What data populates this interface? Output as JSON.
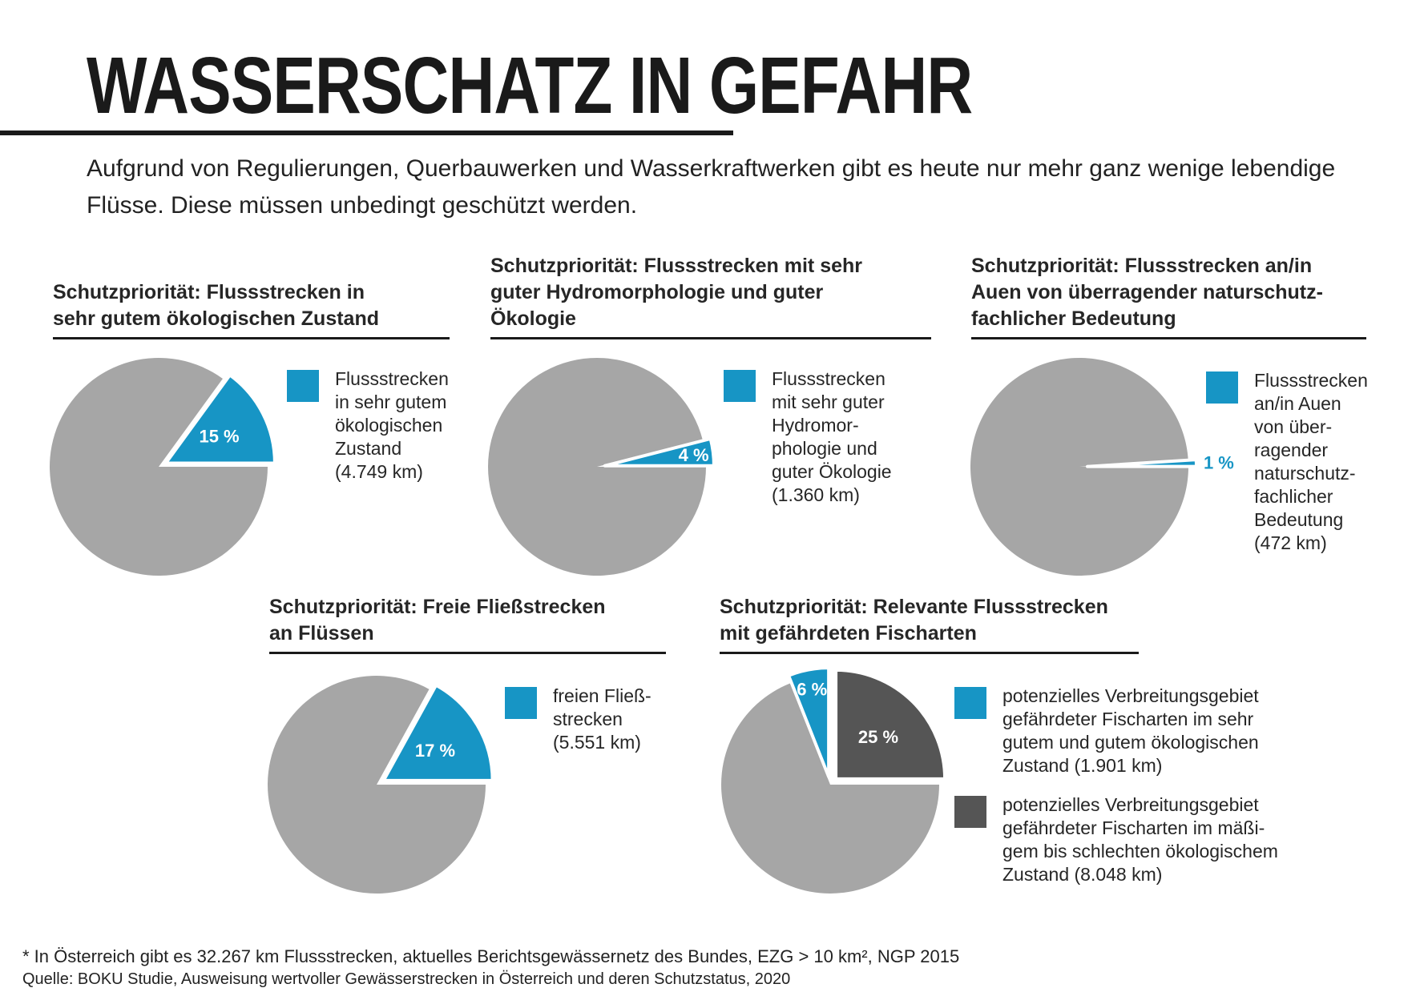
{
  "title": "WASSERSCHATZ IN GEFAHR",
  "intro": "Aufgrund von Regulierungen, Querbauwerken und Wasserkraftwerken gibt es heute nur mehr ganz wenige lebendige Flüsse. Diese müssen unbedingt geschützt werden.",
  "colors": {
    "rest": "#a6a6a6",
    "highlight": "#1795c5",
    "dark": "#555555"
  },
  "chart_data": [
    {
      "type": "pie",
      "title": "Schutzpriorität: Flussstrecken in sehr gutem ökologischen Zustand",
      "title_lines": [
        "Schutzpriorität: Flussstrecken in",
        "sehr gutem ökologischen Zustand"
      ],
      "slices": [
        {
          "label": "15 %",
          "value": 15,
          "color": "#1795c5",
          "label_inside": true
        }
      ],
      "legend": [
        {
          "color": "#1795c5",
          "lines": [
            "Flussstrecken",
            "in sehr gutem",
            "ökologischen",
            "Zustand",
            "(4.749 km)"
          ]
        }
      ]
    },
    {
      "type": "pie",
      "title": "Schutzpriorität: Flussstrecken mit sehr guter Hydromorphologie und guter Ökologie",
      "title_lines": [
        "Schutzpriorität: Flussstrecken mit sehr",
        "guter Hydromorphologie und guter",
        "Ökologie"
      ],
      "slices": [
        {
          "label": "4 %",
          "value": 4,
          "color": "#1795c5",
          "label_inside": true
        }
      ],
      "legend": [
        {
          "color": "#1795c5",
          "lines": [
            "Flussstrecken",
            "mit sehr guter",
            "Hydromor-",
            "phologie und",
            "guter Ökologie",
            "(1.360 km)"
          ]
        }
      ]
    },
    {
      "type": "pie",
      "title": "Schutzpriorität: Flussstrecken an/in Auen von überragender naturschutzfachlicher Bedeutung",
      "title_lines": [
        "Schutzpriorität: Flussstrecken an/in",
        "Auen von überragender naturschutz-",
        "fachlicher Bedeutung"
      ],
      "slices": [
        {
          "label": "1 %",
          "value": 1,
          "color": "#1795c5",
          "label_inside": false
        }
      ],
      "legend": [
        {
          "color": "#1795c5",
          "lines": [
            "Flussstrecken",
            "an/in Auen",
            "von über-",
            "ragender",
            "naturschutz-",
            "fachlicher",
            "Bedeutung",
            "(472 km)"
          ]
        }
      ]
    },
    {
      "type": "pie",
      "title": "Schutzpriorität: Freie Fließstrecken an Flüssen",
      "title_lines": [
        "Schutzpriorität: Freie Fließstrecken",
        "an Flüssen"
      ],
      "slices": [
        {
          "label": "17 %",
          "value": 17,
          "color": "#1795c5",
          "label_inside": true
        }
      ],
      "legend": [
        {
          "color": "#1795c5",
          "lines": [
            "freien Fließ-",
            "strecken",
            "(5.551 km)"
          ]
        }
      ]
    },
    {
      "type": "pie",
      "title": "Schutzpriorität: Relevante Flussstrecken mit gefährdeten Fischarten",
      "title_lines": [
        "Schutzpriorität: Relevante Flussstrecken",
        "mit gefährdeten Fischarten"
      ],
      "slices": [
        {
          "label": "6 %",
          "value": 6,
          "color": "#1795c5",
          "label_inside": true
        },
        {
          "label": "25 %",
          "value": 25,
          "color": "#555555",
          "label_inside": true
        }
      ],
      "legend": [
        {
          "color": "#1795c5",
          "lines": [
            "potenzielles Verbreitungsgebiet",
            "gefährdeter Fischarten im sehr",
            "gutem und gutem ökologischen",
            "Zustand (1.901 km)"
          ]
        },
        {
          "color": "#555555",
          "lines": [
            "potenzielles Verbreitungsgebiet",
            "gefährdeter Fischarten im mäßi-",
            "gem bis schlechten ökologischem",
            "Zustand (8.048 km)"
          ]
        }
      ]
    }
  ],
  "footnote": "* In Österreich gibt es 32.267 km Flussstrecken, aktuelles Berichtsgewässernetz des Bundes, EZG > 10 km², NGP 2015",
  "source": "Quelle: BOKU Studie, Ausweisung wertvoller Gewässerstrecken in Österreich und deren Schutzstatus, 2020"
}
